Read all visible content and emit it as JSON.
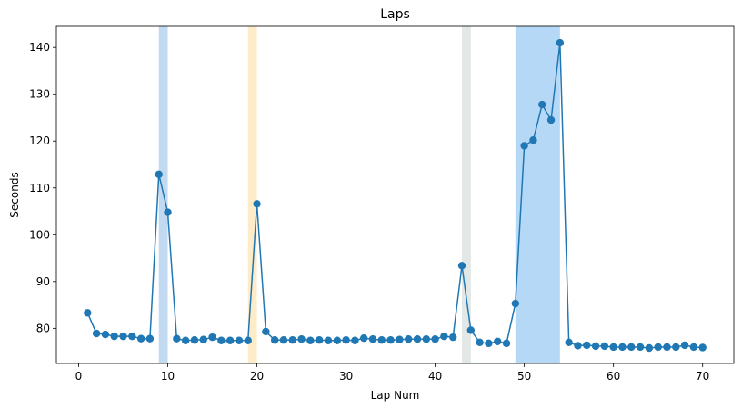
{
  "chart_data": {
    "type": "line",
    "title": "Laps",
    "xlabel": "Lap Num",
    "ylabel": "Seconds",
    "xlim": [
      -2.5,
      73.5
    ],
    "ylim": [
      72.5,
      144.5
    ],
    "xticks": [
      0,
      10,
      20,
      30,
      40,
      50,
      60,
      70
    ],
    "yticks": [
      80,
      90,
      100,
      110,
      120,
      130,
      140
    ],
    "grid": false,
    "line_color": "#1f77b4",
    "x": [
      1,
      2,
      3,
      4,
      5,
      6,
      7,
      8,
      9,
      10,
      11,
      12,
      13,
      14,
      15,
      16,
      17,
      18,
      19,
      20,
      21,
      22,
      23,
      24,
      25,
      26,
      27,
      28,
      29,
      30,
      31,
      32,
      33,
      34,
      35,
      36,
      37,
      38,
      39,
      40,
      41,
      42,
      43,
      44,
      45,
      46,
      47,
      48,
      49,
      50,
      51,
      52,
      53,
      54,
      55,
      56,
      57,
      58,
      59,
      60,
      61,
      62,
      63,
      64,
      65,
      66,
      67,
      68,
      69,
      70
    ],
    "y": [
      83.3,
      78.9,
      78.7,
      78.3,
      78.3,
      78.3,
      77.8,
      77.8,
      112.9,
      104.8,
      77.8,
      77.4,
      77.5,
      77.6,
      78.1,
      77.4,
      77.4,
      77.4,
      77.4,
      106.6,
      79.3,
      77.5,
      77.5,
      77.5,
      77.7,
      77.4,
      77.5,
      77.4,
      77.4,
      77.5,
      77.4,
      77.9,
      77.7,
      77.5,
      77.5,
      77.6,
      77.7,
      77.7,
      77.7,
      77.7,
      78.3,
      78.1,
      93.4,
      79.6,
      77.0,
      76.8,
      77.2,
      76.8,
      85.3,
      119.0,
      120.2,
      127.8,
      124.5,
      141.0,
      77.0,
      76.3,
      76.4,
      76.2,
      76.2,
      76.0,
      76.0,
      76.0,
      76.0,
      75.8,
      76.0,
      76.0,
      76.0,
      76.4,
      76.0,
      75.9
    ],
    "highlight_bands": [
      {
        "x0": 9,
        "x1": 10,
        "color": "#a0c4ea",
        "opacity": 0.65
      },
      {
        "x0": 19,
        "x1": 20,
        "color": "#fde4b4",
        "opacity": 0.75
      },
      {
        "x0": 43,
        "x1": 44,
        "color": "#dde4e0",
        "opacity": 0.85
      },
      {
        "x0": 49,
        "x1": 54,
        "color": "#9ccbf3",
        "opacity": 0.75
      }
    ]
  }
}
